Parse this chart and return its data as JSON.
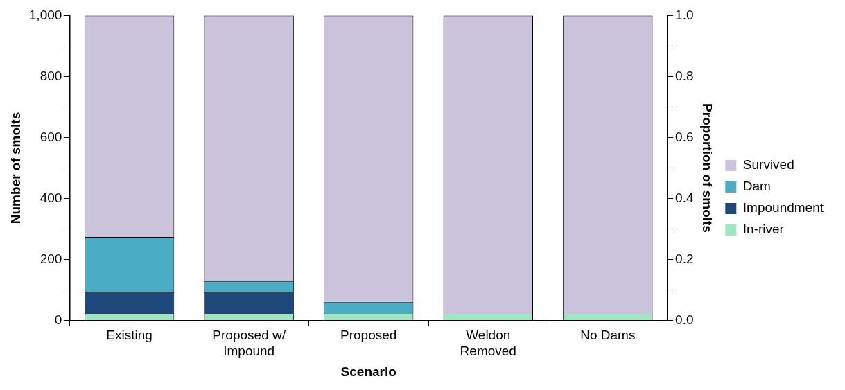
{
  "chart_data": {
    "type": "bar",
    "stacked": true,
    "xlabel": "Scenario",
    "ylabel": "Number of smolts",
    "y2label": "Proportion of smolts",
    "categories": [
      "Existing",
      "Proposed w/ Impound",
      "Proposed",
      "Weldon Removed",
      "No Dams"
    ],
    "series": [
      {
        "name": "In-river",
        "color": "#9de8c1",
        "values": [
          22,
          22,
          22,
          22,
          22
        ]
      },
      {
        "name": "Impoundment",
        "color": "#1f497d",
        "values": [
          71,
          71,
          0,
          0,
          0
        ]
      },
      {
        "name": "Dam",
        "color": "#4bacc6",
        "values": [
          181,
          36,
          39,
          0,
          0
        ]
      },
      {
        "name": "Survived",
        "color": "#cbc2db",
        "values": [
          726,
          871,
          939,
          978,
          978
        ]
      }
    ],
    "ylim": [
      0,
      1000
    ],
    "yticks": [
      {
        "value": 0,
        "label": "0"
      },
      {
        "value": 100,
        "label": null
      },
      {
        "value": 200,
        "label": "200"
      },
      {
        "value": 300,
        "label": null
      },
      {
        "value": 400,
        "label": "400"
      },
      {
        "value": 500,
        "label": null
      },
      {
        "value": 600,
        "label": "600"
      },
      {
        "value": 700,
        "label": null
      },
      {
        "value": 800,
        "label": "800"
      },
      {
        "value": 900,
        "label": null
      },
      {
        "value": 1000,
        "label": "1,000"
      }
    ],
    "y2lim": [
      0,
      1
    ],
    "y2ticks": [
      {
        "value": 0,
        "label": "0.0"
      },
      {
        "value": 0.1,
        "label": null
      },
      {
        "value": 0.2,
        "label": "0.2"
      },
      {
        "value": 0.3,
        "label": null
      },
      {
        "value": 0.4,
        "label": "0.4"
      },
      {
        "value": 0.5,
        "label": null
      },
      {
        "value": 0.6,
        "label": "0.6"
      },
      {
        "value": 0.7,
        "label": null
      },
      {
        "value": 0.8,
        "label": "0.8"
      },
      {
        "value": 0.9,
        "label": null
      },
      {
        "value": 1,
        "label": "1.0"
      }
    ],
    "grid": false,
    "legend": "right"
  }
}
